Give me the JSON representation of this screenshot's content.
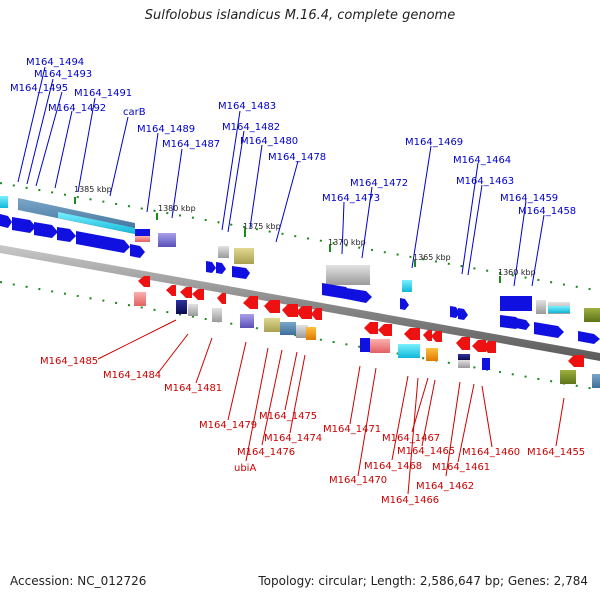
{
  "title": "Sulfolobus islandicus M.16.4, complete genome",
  "footer": {
    "accession": "Accession: NC_012726",
    "summary": "Topology: circular; Length: 2,586,647 bp; Genes: 2,784"
  },
  "colors": {
    "forward_gene": "#1010e0",
    "reverse_gene": "#ee1111",
    "forward_label": "#0000cc",
    "reverse_label": "#cc0000",
    "backbone": "#888888",
    "tick": "#1a8a1a"
  },
  "kbp_labels": [
    "1385 kbp",
    "1380 kbp",
    "1375 kbp",
    "1370 kbp",
    "1365 kbp",
    "1360 kbp"
  ],
  "forward_genes": [
    "M164_1494",
    "M164_1493",
    "M164_1495",
    "M164_1491",
    "M164_1492",
    "carB",
    "M164_1489",
    "M164_1487",
    "M164_1483",
    "M164_1482",
    "M164_1480",
    "M164_1478",
    "M164_1469",
    "M164_1464",
    "M164_1472",
    "M164_1463",
    "M164_1473",
    "M164_1459",
    "M164_1458"
  ],
  "reverse_genes": [
    "M164_1485",
    "M164_1484",
    "M164_1481",
    "M164_1479",
    "M164_1475",
    "M164_1474",
    "M164_1476",
    "ubiA",
    "M164_1471",
    "M164_1467",
    "M164_1465",
    "M164_1468",
    "M164_1470",
    "M164_1461",
    "M164_1462",
    "M164_1466",
    "M164_1460",
    "M164_1455"
  ]
}
